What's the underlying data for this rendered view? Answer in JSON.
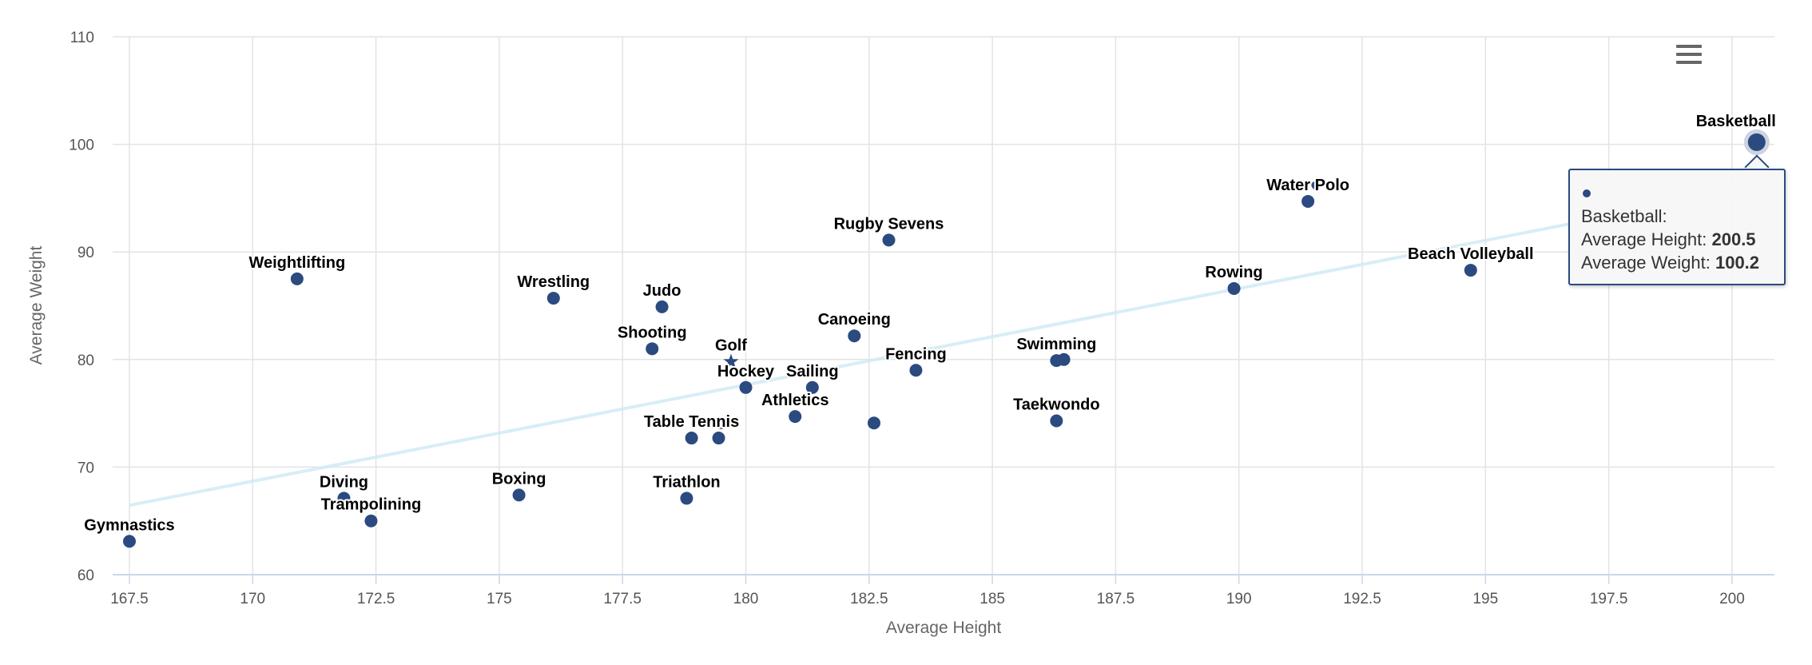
{
  "chart_data": {
    "type": "scatter",
    "xlabel": "Average Height",
    "ylabel": "Average Weight",
    "xlim": [
      167.16,
      200.86
    ],
    "ylim": [
      60,
      110
    ],
    "xticks": [
      "167.5",
      "170",
      "172.5",
      "175",
      "177.5",
      "180",
      "182.5",
      "185",
      "187.5",
      "190",
      "192.5",
      "195",
      "197.5",
      "200"
    ],
    "yticks": [
      "60",
      "70",
      "80",
      "90",
      "100",
      "110"
    ],
    "grid": true,
    "legend": "none",
    "colors": {
      "point": "#2b4a80",
      "inactive_point": "#d5dbe6",
      "trend": "#cdeaf5"
    },
    "points": [
      {
        "label": "Gymnastics",
        "x": 167.5,
        "y": 63.1
      },
      {
        "label": "Weightlifting",
        "x": 170.9,
        "y": 87.5
      },
      {
        "label": "Diving",
        "x": 171.85,
        "y": 67.1
      },
      {
        "label": "Trampolining",
        "x": 172.4,
        "y": 65.0
      },
      {
        "label": "Boxing",
        "x": 175.4,
        "y": 67.4
      },
      {
        "label": "Wrestling",
        "x": 176.1,
        "y": 85.7
      },
      {
        "label": "Judo",
        "x": 178.3,
        "y": 84.9
      },
      {
        "label": "Shooting",
        "x": 178.1,
        "y": 81.0
      },
      {
        "label": "Triathlon",
        "x": 178.8,
        "y": 67.1
      },
      {
        "label": "Table Tennis",
        "x": 178.9,
        "y": 72.7
      },
      {
        "label": "",
        "x": 179.45,
        "y": 72.7
      },
      {
        "label": "",
        "x": 179.5,
        "y": 73.9,
        "marker": "small"
      },
      {
        "label": "Golf",
        "x": 179.7,
        "y": 79.8,
        "marker": "star"
      },
      {
        "label": "Hockey",
        "x": 180.0,
        "y": 77.4
      },
      {
        "label": "Athletics",
        "x": 181.0,
        "y": 74.7
      },
      {
        "label": "Sailing",
        "x": 181.35,
        "y": 77.4
      },
      {
        "label": "Canoeing",
        "x": 182.2,
        "y": 82.2
      },
      {
        "label": "",
        "x": 182.6,
        "y": 74.1
      },
      {
        "label": "Rugby Sevens",
        "x": 182.9,
        "y": 91.1
      },
      {
        "label": "Fencing",
        "x": 183.45,
        "y": 79.0
      },
      {
        "label": "Swimming",
        "x": 186.3,
        "y": 79.9
      },
      {
        "label": "",
        "x": 186.45,
        "y": 80.0
      },
      {
        "label": "Taekwondo",
        "x": 186.3,
        "y": 74.3
      },
      {
        "label": "Rowing",
        "x": 189.9,
        "y": 86.6
      },
      {
        "label": "Water Polo",
        "x": 191.4,
        "y": 94.7
      },
      {
        "label": "",
        "x": 191.55,
        "y": 96.2,
        "marker": "small"
      },
      {
        "label": "Beach Volleyball",
        "x": 194.7,
        "y": 88.3
      },
      {
        "label": "",
        "x": 196.9,
        "y": 89.6,
        "marker": "inactive"
      },
      {
        "label": "Basketball",
        "x": 200.5,
        "y": 100.2,
        "marker": "hover"
      }
    ],
    "trendline": {
      "x": [
        167.5,
        200.5
      ],
      "y": [
        66.45,
        96.0
      ]
    }
  },
  "tooltip": {
    "title": "Basketball:",
    "height_label": "Average Height: ",
    "height_value": "200.5",
    "weight_label": "Average Weight: ",
    "weight_value": "100.2"
  },
  "menu": {
    "icon": "hamburger-menu-icon"
  }
}
